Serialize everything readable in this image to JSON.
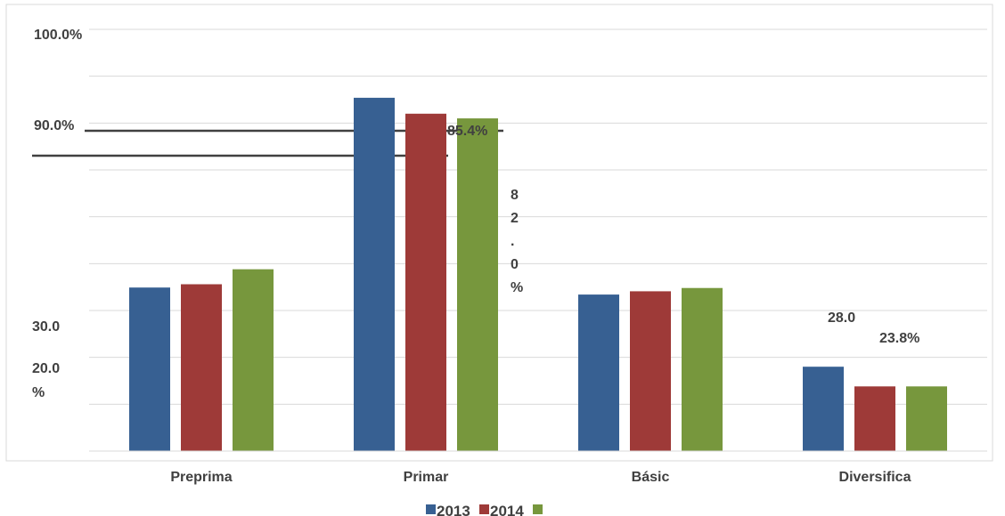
{
  "chart_data": {
    "type": "bar",
    "categories": [
      "Preprima",
      "Primar",
      "Básic",
      "Diversifica"
    ],
    "series": [
      {
        "name": "2013",
        "color": "#376092",
        "values": [
          44.9,
          85.4,
          43.4,
          28.0
        ]
      },
      {
        "name": "2014",
        "color": "#9E3A38",
        "values": [
          45.6,
          82.0,
          44.1,
          23.8
        ]
      },
      {
        "name": "",
        "color": "#77973D",
        "values": [
          48.8,
          81.0,
          44.8,
          23.8
        ]
      }
    ],
    "ytick_labels": [
      {
        "value": 100,
        "text": "100.0%"
      },
      {
        "value": 90,
        "text": "90.0%"
      },
      {
        "value": 30,
        "text": "30.0"
      },
      {
        "value": 20,
        "text": "20.0"
      },
      {
        "value": 17,
        "text": "%"
      }
    ],
    "data_labels": [
      {
        "text": "85.4%"
      },
      {
        "text": "8",
        "vertical": true
      },
      {
        "text": "2",
        "vertical": true
      },
      {
        "text": ".",
        "vertical": true
      },
      {
        "text": "0",
        "vertical": true
      },
      {
        "text": "%",
        "vertical": true
      },
      {
        "text": "28.0"
      },
      {
        "text": "23.8%"
      }
    ],
    "ylim": [
      10,
      100
    ],
    "grid": true,
    "legend": "bottom"
  }
}
